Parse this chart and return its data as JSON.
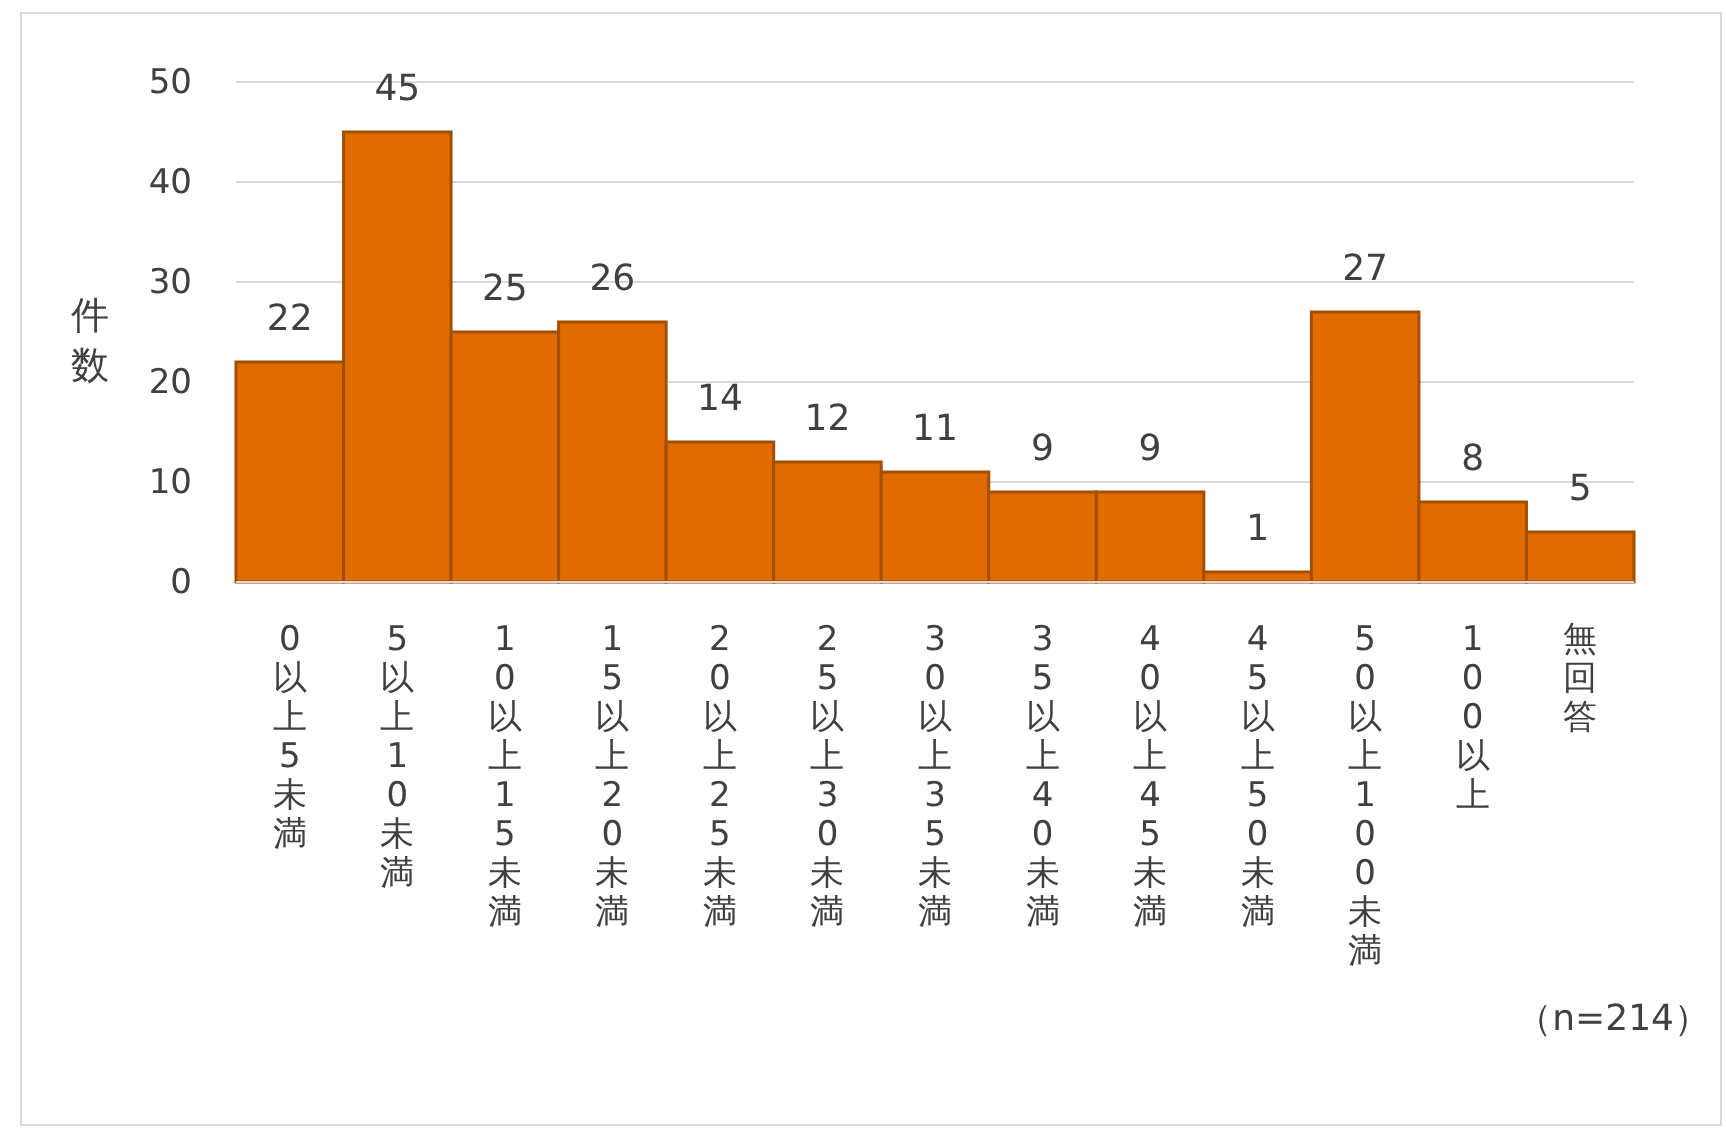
{
  "chart_data": {
    "type": "bar",
    "ylabel": "件数",
    "categories": [
      "0以上5未満",
      "5以上10未満",
      "10以上15未満",
      "15以上20未満",
      "20以上25未満",
      "25以上30未満",
      "30以上35未満",
      "35以上40未満",
      "40以上45未満",
      "45以上50未満",
      "50以上100未満",
      "100以上",
      "無回答"
    ],
    "values": [
      22,
      45,
      25,
      26,
      14,
      12,
      11,
      9,
      9,
      1,
      27,
      8,
      5
    ],
    "color": "#e06c00",
    "ylim": [
      0,
      50
    ],
    "yticks": [
      0,
      10,
      20,
      30,
      40,
      50
    ],
    "grid": "y",
    "data_labels": true,
    "annotations": [
      "（n=214）"
    ]
  }
}
